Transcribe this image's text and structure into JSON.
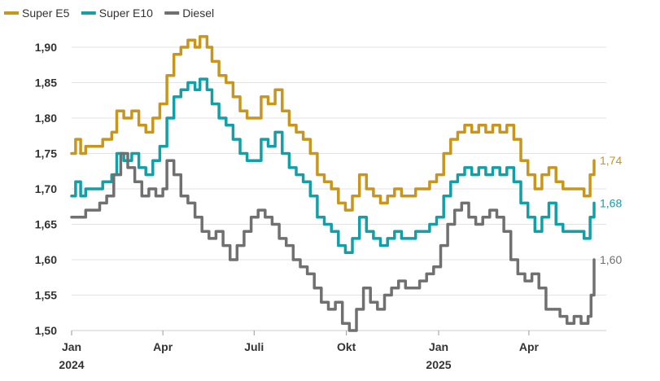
{
  "chart_data": {
    "type": "line",
    "title": "",
    "xlabel": "",
    "ylabel": "",
    "ylim": [
      1.5,
      1.92
    ],
    "yticks": [
      "1,50",
      "1,55",
      "1,60",
      "1,65",
      "1,70",
      "1,75",
      "1,80",
      "1,85",
      "1,90"
    ],
    "ytick_values": [
      1.5,
      1.55,
      1.6,
      1.65,
      1.7,
      1.75,
      1.8,
      1.85,
      1.9
    ],
    "xlim": [
      "2024-01-01",
      "2025-06-05"
    ],
    "xticks": [
      {
        "date": "2024-01-01",
        "label": "Jan",
        "sublabel": "2024"
      },
      {
        "date": "2024-04-01",
        "label": "Apr",
        "sublabel": ""
      },
      {
        "date": "2024-07-01",
        "label": "Juli",
        "sublabel": ""
      },
      {
        "date": "2024-10-01",
        "label": "Okt",
        "sublabel": ""
      },
      {
        "date": "2025-01-01",
        "label": "Jan",
        "sublabel": "2025"
      },
      {
        "date": "2025-04-01",
        "label": "Apr",
        "sublabel": ""
      }
    ],
    "grid": true,
    "legend": "top-left",
    "series": [
      {
        "name": "Super E5",
        "color": "#c8961c",
        "end_label": "1,74",
        "points": [
          [
            "2024-01-01",
            1.75
          ],
          [
            "2024-01-05",
            1.77
          ],
          [
            "2024-01-10",
            1.75
          ],
          [
            "2024-01-15",
            1.76
          ],
          [
            "2024-01-25",
            1.76
          ],
          [
            "2024-02-01",
            1.77
          ],
          [
            "2024-02-10",
            1.78
          ],
          [
            "2024-02-15",
            1.81
          ],
          [
            "2024-02-22",
            1.8
          ],
          [
            "2024-03-01",
            1.81
          ],
          [
            "2024-03-08",
            1.79
          ],
          [
            "2024-03-15",
            1.78
          ],
          [
            "2024-03-22",
            1.8
          ],
          [
            "2024-03-29",
            1.82
          ],
          [
            "2024-04-05",
            1.86
          ],
          [
            "2024-04-12",
            1.89
          ],
          [
            "2024-04-19",
            1.9
          ],
          [
            "2024-04-26",
            1.91
          ],
          [
            "2024-05-03",
            1.9
          ],
          [
            "2024-05-08",
            1.915
          ],
          [
            "2024-05-15",
            1.9
          ],
          [
            "2024-05-20",
            1.88
          ],
          [
            "2024-05-27",
            1.86
          ],
          [
            "2024-06-03",
            1.85
          ],
          [
            "2024-06-10",
            1.83
          ],
          [
            "2024-06-17",
            1.81
          ],
          [
            "2024-06-24",
            1.8
          ],
          [
            "2024-07-01",
            1.8
          ],
          [
            "2024-07-08",
            1.83
          ],
          [
            "2024-07-15",
            1.82
          ],
          [
            "2024-07-22",
            1.84
          ],
          [
            "2024-07-29",
            1.81
          ],
          [
            "2024-08-05",
            1.79
          ],
          [
            "2024-08-12",
            1.78
          ],
          [
            "2024-08-19",
            1.77
          ],
          [
            "2024-08-26",
            1.75
          ],
          [
            "2024-09-02",
            1.72
          ],
          [
            "2024-09-09",
            1.71
          ],
          [
            "2024-09-16",
            1.7
          ],
          [
            "2024-09-23",
            1.68
          ],
          [
            "2024-09-30",
            1.67
          ],
          [
            "2024-10-07",
            1.69
          ],
          [
            "2024-10-14",
            1.72
          ],
          [
            "2024-10-21",
            1.7
          ],
          [
            "2024-10-28",
            1.69
          ],
          [
            "2024-11-04",
            1.68
          ],
          [
            "2024-11-11",
            1.69
          ],
          [
            "2024-11-18",
            1.7
          ],
          [
            "2024-11-25",
            1.69
          ],
          [
            "2024-12-02",
            1.69
          ],
          [
            "2024-12-09",
            1.7
          ],
          [
            "2024-12-16",
            1.7
          ],
          [
            "2024-12-23",
            1.71
          ],
          [
            "2024-12-30",
            1.72
          ],
          [
            "2025-01-06",
            1.75
          ],
          [
            "2025-01-13",
            1.77
          ],
          [
            "2025-01-20",
            1.78
          ],
          [
            "2025-01-27",
            1.79
          ],
          [
            "2025-02-03",
            1.78
          ],
          [
            "2025-02-10",
            1.79
          ],
          [
            "2025-02-17",
            1.78
          ],
          [
            "2025-02-24",
            1.79
          ],
          [
            "2025-03-03",
            1.78
          ],
          [
            "2025-03-10",
            1.79
          ],
          [
            "2025-03-17",
            1.77
          ],
          [
            "2025-03-24",
            1.74
          ],
          [
            "2025-03-31",
            1.72
          ],
          [
            "2025-04-07",
            1.7
          ],
          [
            "2025-04-14",
            1.72
          ],
          [
            "2025-04-21",
            1.73
          ],
          [
            "2025-04-28",
            1.71
          ],
          [
            "2025-05-05",
            1.7
          ],
          [
            "2025-05-12",
            1.7
          ],
          [
            "2025-05-19",
            1.7
          ],
          [
            "2025-05-26",
            1.69
          ],
          [
            "2025-06-01",
            1.72
          ],
          [
            "2025-06-05",
            1.74
          ]
        ]
      },
      {
        "name": "Super E10",
        "color": "#12a0a6",
        "end_label": "1,68",
        "points": [
          [
            "2024-01-01",
            1.69
          ],
          [
            "2024-01-05",
            1.71
          ],
          [
            "2024-01-10",
            1.69
          ],
          [
            "2024-01-15",
            1.7
          ],
          [
            "2024-01-25",
            1.7
          ],
          [
            "2024-02-01",
            1.71
          ],
          [
            "2024-02-10",
            1.72
          ],
          [
            "2024-02-15",
            1.75
          ],
          [
            "2024-02-22",
            1.74
          ],
          [
            "2024-03-01",
            1.75
          ],
          [
            "2024-03-08",
            1.73
          ],
          [
            "2024-03-15",
            1.72
          ],
          [
            "2024-03-22",
            1.74
          ],
          [
            "2024-03-29",
            1.76
          ],
          [
            "2024-04-05",
            1.8
          ],
          [
            "2024-04-12",
            1.83
          ],
          [
            "2024-04-19",
            1.84
          ],
          [
            "2024-04-26",
            1.85
          ],
          [
            "2024-05-03",
            1.84
          ],
          [
            "2024-05-08",
            1.855
          ],
          [
            "2024-05-15",
            1.84
          ],
          [
            "2024-05-20",
            1.82
          ],
          [
            "2024-05-27",
            1.8
          ],
          [
            "2024-06-03",
            1.79
          ],
          [
            "2024-06-10",
            1.77
          ],
          [
            "2024-06-17",
            1.75
          ],
          [
            "2024-06-24",
            1.74
          ],
          [
            "2024-07-01",
            1.74
          ],
          [
            "2024-07-08",
            1.77
          ],
          [
            "2024-07-15",
            1.76
          ],
          [
            "2024-07-22",
            1.78
          ],
          [
            "2024-07-29",
            1.75
          ],
          [
            "2024-08-05",
            1.73
          ],
          [
            "2024-08-12",
            1.72
          ],
          [
            "2024-08-19",
            1.71
          ],
          [
            "2024-08-26",
            1.69
          ],
          [
            "2024-09-02",
            1.66
          ],
          [
            "2024-09-09",
            1.65
          ],
          [
            "2024-09-16",
            1.64
          ],
          [
            "2024-09-23",
            1.62
          ],
          [
            "2024-09-30",
            1.61
          ],
          [
            "2024-10-07",
            1.63
          ],
          [
            "2024-10-14",
            1.66
          ],
          [
            "2024-10-21",
            1.64
          ],
          [
            "2024-10-28",
            1.63
          ],
          [
            "2024-11-04",
            1.62
          ],
          [
            "2024-11-11",
            1.63
          ],
          [
            "2024-11-18",
            1.64
          ],
          [
            "2024-11-25",
            1.63
          ],
          [
            "2024-12-02",
            1.63
          ],
          [
            "2024-12-09",
            1.64
          ],
          [
            "2024-12-16",
            1.64
          ],
          [
            "2024-12-23",
            1.65
          ],
          [
            "2024-12-30",
            1.66
          ],
          [
            "2025-01-06",
            1.69
          ],
          [
            "2025-01-13",
            1.71
          ],
          [
            "2025-01-20",
            1.72
          ],
          [
            "2025-01-27",
            1.73
          ],
          [
            "2025-02-03",
            1.72
          ],
          [
            "2025-02-10",
            1.73
          ],
          [
            "2025-02-17",
            1.72
          ],
          [
            "2025-02-24",
            1.73
          ],
          [
            "2025-03-03",
            1.72
          ],
          [
            "2025-03-10",
            1.73
          ],
          [
            "2025-03-17",
            1.71
          ],
          [
            "2025-03-24",
            1.68
          ],
          [
            "2025-03-31",
            1.66
          ],
          [
            "2025-04-07",
            1.64
          ],
          [
            "2025-04-14",
            1.66
          ],
          [
            "2025-04-21",
            1.68
          ],
          [
            "2025-04-28",
            1.65
          ],
          [
            "2025-05-05",
            1.64
          ],
          [
            "2025-05-12",
            1.64
          ],
          [
            "2025-05-19",
            1.64
          ],
          [
            "2025-05-26",
            1.63
          ],
          [
            "2025-06-01",
            1.66
          ],
          [
            "2025-06-05",
            1.68
          ]
        ]
      },
      {
        "name": "Diesel",
        "color": "#707070",
        "end_label": "1,60",
        "points": [
          [
            "2024-01-01",
            1.66
          ],
          [
            "2024-01-08",
            1.66
          ],
          [
            "2024-01-15",
            1.67
          ],
          [
            "2024-01-22",
            1.67
          ],
          [
            "2024-01-29",
            1.68
          ],
          [
            "2024-02-05",
            1.69
          ],
          [
            "2024-02-12",
            1.72
          ],
          [
            "2024-02-19",
            1.75
          ],
          [
            "2024-02-26",
            1.73
          ],
          [
            "2024-03-04",
            1.71
          ],
          [
            "2024-03-11",
            1.69
          ],
          [
            "2024-03-18",
            1.7
          ],
          [
            "2024-03-25",
            1.69
          ],
          [
            "2024-04-01",
            1.7
          ],
          [
            "2024-04-05",
            1.74
          ],
          [
            "2024-04-12",
            1.72
          ],
          [
            "2024-04-19",
            1.69
          ],
          [
            "2024-04-26",
            1.68
          ],
          [
            "2024-05-03",
            1.66
          ],
          [
            "2024-05-10",
            1.64
          ],
          [
            "2024-05-17",
            1.63
          ],
          [
            "2024-05-24",
            1.64
          ],
          [
            "2024-05-31",
            1.62
          ],
          [
            "2024-06-07",
            1.6
          ],
          [
            "2024-06-14",
            1.62
          ],
          [
            "2024-06-21",
            1.64
          ],
          [
            "2024-06-28",
            1.66
          ],
          [
            "2024-07-05",
            1.67
          ],
          [
            "2024-07-12",
            1.66
          ],
          [
            "2024-07-19",
            1.65
          ],
          [
            "2024-07-26",
            1.63
          ],
          [
            "2024-08-02",
            1.62
          ],
          [
            "2024-08-09",
            1.6
          ],
          [
            "2024-08-16",
            1.59
          ],
          [
            "2024-08-23",
            1.58
          ],
          [
            "2024-08-30",
            1.56
          ],
          [
            "2024-09-06",
            1.54
          ],
          [
            "2024-09-13",
            1.53
          ],
          [
            "2024-09-20",
            1.54
          ],
          [
            "2024-09-27",
            1.51
          ],
          [
            "2024-10-04",
            1.5
          ],
          [
            "2024-10-11",
            1.53
          ],
          [
            "2024-10-18",
            1.56
          ],
          [
            "2024-10-25",
            1.54
          ],
          [
            "2024-11-01",
            1.53
          ],
          [
            "2024-11-08",
            1.55
          ],
          [
            "2024-11-15",
            1.56
          ],
          [
            "2024-11-22",
            1.57
          ],
          [
            "2024-11-29",
            1.56
          ],
          [
            "2024-12-06",
            1.56
          ],
          [
            "2024-12-13",
            1.57
          ],
          [
            "2024-12-20",
            1.58
          ],
          [
            "2024-12-27",
            1.59
          ],
          [
            "2025-01-03",
            1.62
          ],
          [
            "2025-01-10",
            1.65
          ],
          [
            "2025-01-17",
            1.67
          ],
          [
            "2025-01-24",
            1.68
          ],
          [
            "2025-01-31",
            1.66
          ],
          [
            "2025-02-07",
            1.65
          ],
          [
            "2025-02-14",
            1.66
          ],
          [
            "2025-02-21",
            1.67
          ],
          [
            "2025-02-28",
            1.66
          ],
          [
            "2025-03-07",
            1.64
          ],
          [
            "2025-03-14",
            1.6
          ],
          [
            "2025-03-21",
            1.58
          ],
          [
            "2025-03-28",
            1.57
          ],
          [
            "2025-04-04",
            1.58
          ],
          [
            "2025-04-11",
            1.56
          ],
          [
            "2025-04-18",
            1.53
          ],
          [
            "2025-04-25",
            1.53
          ],
          [
            "2025-05-02",
            1.52
          ],
          [
            "2025-05-09",
            1.51
          ],
          [
            "2025-05-16",
            1.52
          ],
          [
            "2025-05-23",
            1.51
          ],
          [
            "2025-05-30",
            1.52
          ],
          [
            "2025-06-02",
            1.55
          ],
          [
            "2025-06-05",
            1.6
          ]
        ]
      }
    ]
  }
}
